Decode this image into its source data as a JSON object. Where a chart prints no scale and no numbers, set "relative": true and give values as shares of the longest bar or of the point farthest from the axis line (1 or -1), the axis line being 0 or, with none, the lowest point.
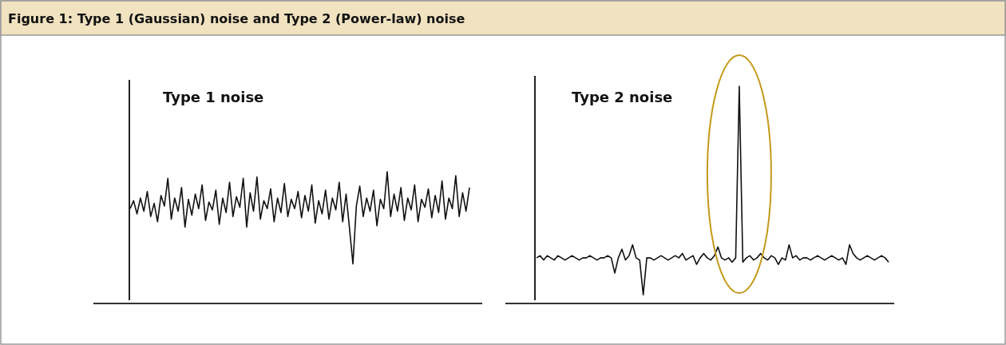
{
  "chart_data": [
    {
      "type": "line",
      "title": "Type 1 noise",
      "relative": true,
      "annotations": [
        "Figure 1: Type 1 (Gaussian) noise and Type 2 (Power-law) noise"
      ],
      "categories": [
        null,
        null,
        null,
        null,
        null,
        null,
        null,
        null,
        null,
        null,
        null,
        null,
        null,
        null,
        null,
        null,
        null,
        null,
        null,
        null,
        null,
        null,
        null,
        null,
        null,
        null,
        null,
        null,
        null,
        null,
        null,
        null,
        null,
        null,
        null,
        null,
        null,
        null,
        null,
        null,
        null,
        null,
        null,
        null,
        null,
        null,
        null,
        null,
        null,
        null,
        null,
        null,
        null,
        null,
        null,
        null,
        null,
        null,
        null,
        null,
        null,
        null,
        null,
        null,
        null,
        null,
        null,
        null,
        null,
        null,
        null,
        null,
        null,
        null,
        null,
        null,
        null,
        null,
        null,
        null,
        null,
        null,
        null,
        null,
        null,
        null,
        null,
        null,
        null,
        null,
        null,
        null,
        null,
        null,
        null,
        null,
        null,
        null,
        null,
        null
      ],
      "series": [
        {
          "color": "#111111",
          "values": [
            0.72,
            0.78,
            0.68,
            0.8,
            0.7,
            0.85,
            0.66,
            0.76,
            0.62,
            0.82,
            0.74,
            0.95,
            0.64,
            0.8,
            0.7,
            0.88,
            0.58,
            0.79,
            0.67,
            0.83,
            0.72,
            0.9,
            0.63,
            0.77,
            0.71,
            0.86,
            0.6,
            0.8,
            0.69,
            0.92,
            0.66,
            0.81,
            0.73,
            0.95,
            0.58,
            0.84,
            0.7,
            0.96,
            0.64,
            0.78,
            0.72,
            0.87,
            0.62,
            0.8,
            0.69,
            0.91,
            0.66,
            0.79,
            0.72,
            0.85,
            0.65,
            0.82,
            0.7,
            0.9,
            0.61,
            0.78,
            0.68,
            0.86,
            0.64,
            0.8,
            0.71,
            0.92,
            0.62,
            0.83,
            0.57,
            0.3,
            0.74,
            0.89,
            0.66,
            0.8,
            0.7,
            0.86,
            0.59,
            0.79,
            0.72,
            1.0,
            0.66,
            0.83,
            0.7,
            0.88,
            0.63,
            0.8,
            0.71,
            0.9,
            0.62,
            0.79,
            0.73,
            0.87,
            0.65,
            0.82,
            0.69,
            0.93,
            0.64,
            0.8,
            0.72,
            0.97,
            0.66,
            0.84,
            0.7,
            0.88
          ]
        }
      ]
    },
    {
      "type": "line",
      "title": "Type 2 noise",
      "relative": true,
      "categories": [
        null,
        null,
        null,
        null,
        null,
        null,
        null,
        null,
        null,
        null,
        null,
        null,
        null,
        null,
        null,
        null,
        null,
        null,
        null,
        null,
        null,
        null,
        null,
        null,
        null,
        null,
        null,
        null,
        null,
        null,
        null,
        null,
        null,
        null,
        null,
        null,
        null,
        null,
        null,
        null,
        null,
        null,
        null,
        null,
        null,
        null,
        null,
        null,
        null,
        null,
        null,
        null,
        null,
        null,
        null,
        null,
        null,
        null,
        null,
        null,
        null,
        null,
        null,
        null,
        null,
        null,
        null,
        null,
        null,
        null,
        null,
        null,
        null,
        null,
        null,
        null,
        null,
        null,
        null,
        null,
        null,
        null,
        null,
        null,
        null,
        null,
        null,
        null,
        null,
        null,
        null,
        null,
        null,
        null,
        null,
        null,
        null,
        null,
        null,
        null
      ],
      "series": [
        {
          "color": "#111111",
          "values": [
            0.21,
            0.22,
            0.2,
            0.22,
            0.21,
            0.2,
            0.22,
            0.21,
            0.2,
            0.21,
            0.22,
            0.21,
            0.2,
            0.21,
            0.21,
            0.22,
            0.21,
            0.2,
            0.21,
            0.21,
            0.22,
            0.21,
            0.14,
            0.21,
            0.25,
            0.2,
            0.22,
            0.27,
            0.21,
            0.2,
            0.04,
            0.21,
            0.21,
            0.2,
            0.21,
            0.22,
            0.21,
            0.2,
            0.21,
            0.22,
            0.21,
            0.23,
            0.2,
            0.21,
            0.22,
            0.18,
            0.21,
            0.23,
            0.21,
            0.2,
            0.22,
            0.26,
            0.21,
            0.2,
            0.21,
            0.19,
            0.21,
            1.0,
            0.19,
            0.21,
            0.22,
            0.2,
            0.21,
            0.23,
            0.21,
            0.2,
            0.22,
            0.21,
            0.18,
            0.21,
            0.2,
            0.27,
            0.21,
            0.22,
            0.2,
            0.21,
            0.21,
            0.2,
            0.21,
            0.22,
            0.21,
            0.2,
            0.21,
            0.22,
            0.21,
            0.2,
            0.21,
            0.18,
            0.27,
            0.23,
            0.21,
            0.2,
            0.21,
            0.22,
            0.21,
            0.2,
            0.21,
            0.22,
            0.21,
            0.19
          ]
        }
      ]
    }
  ]
}
